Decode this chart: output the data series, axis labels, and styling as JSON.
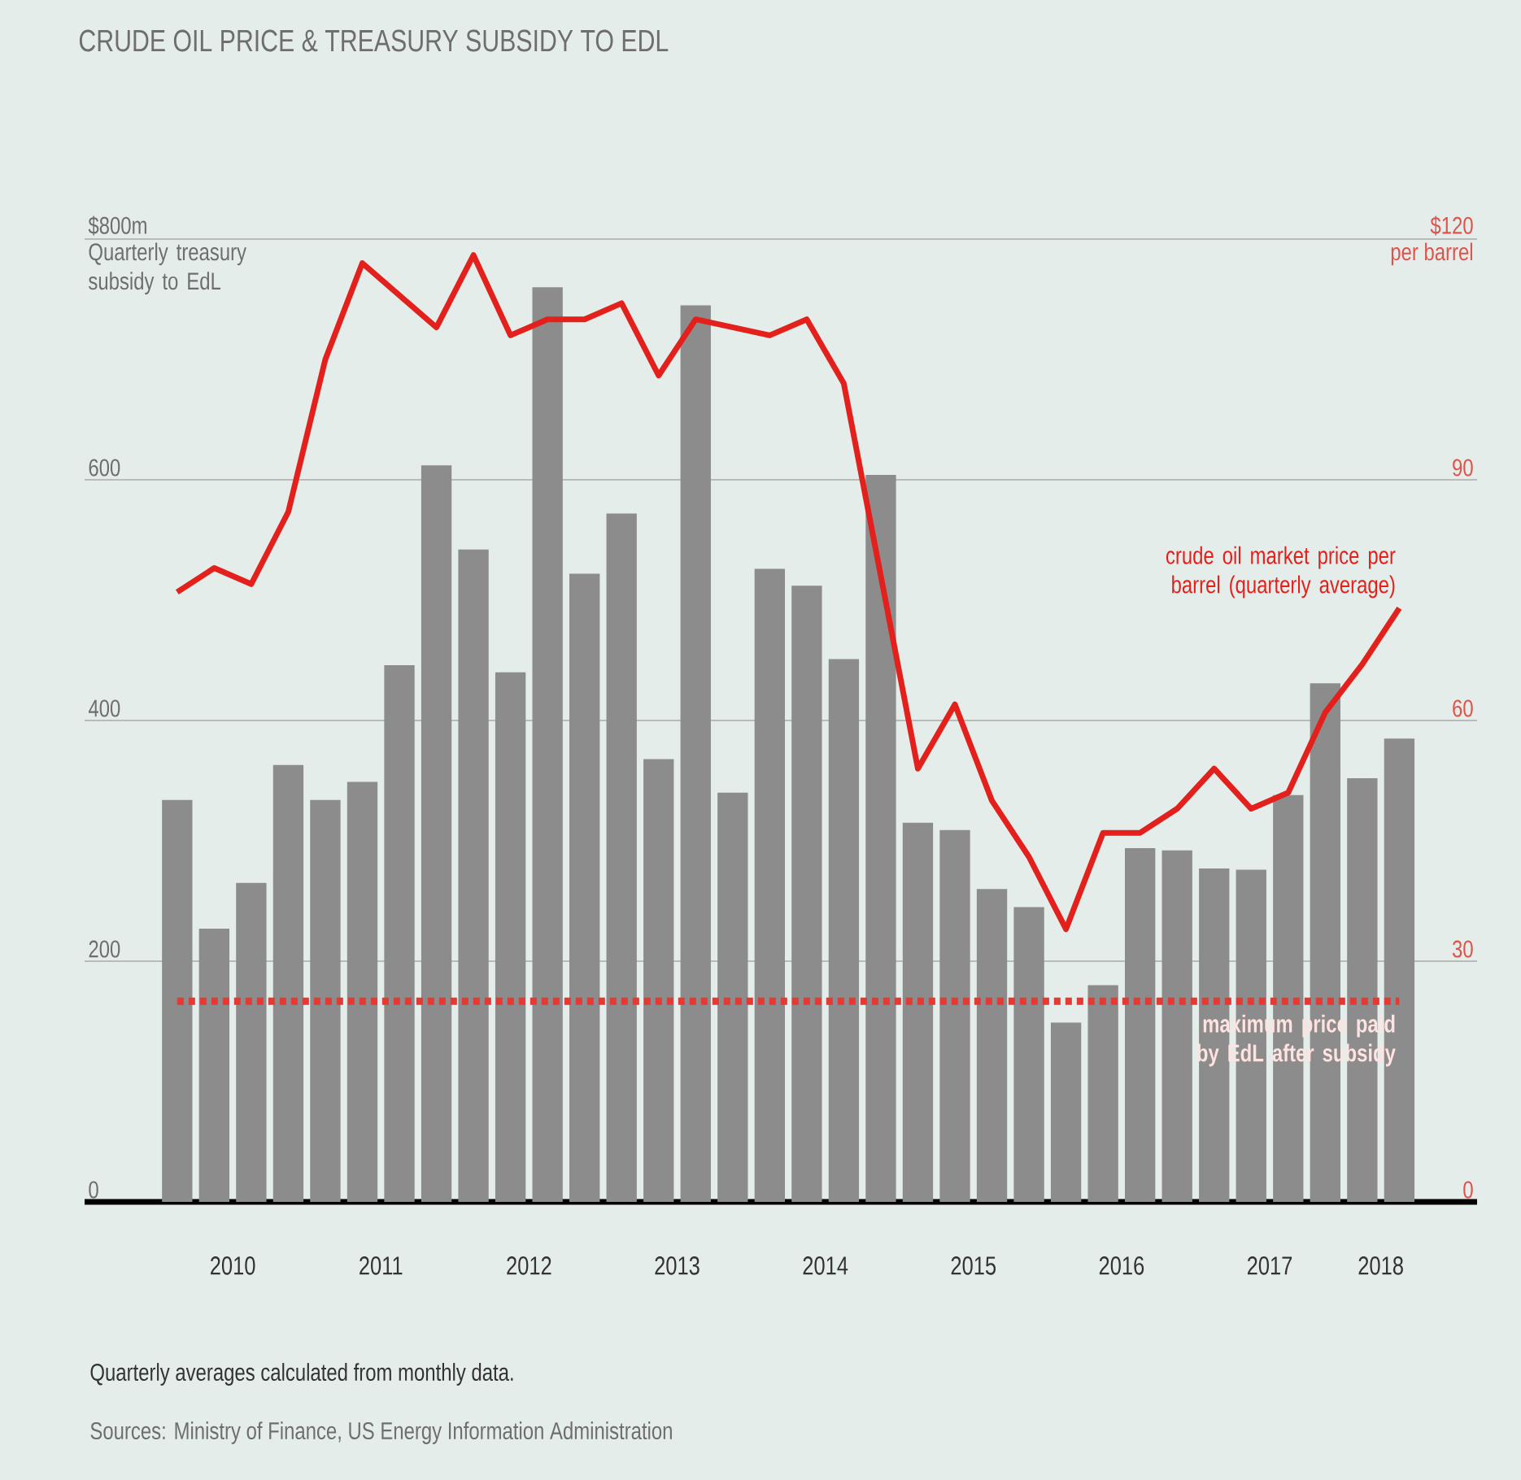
{
  "chart_data": {
    "type": "bar",
    "title": "CRUDE OIL PRICE & TREASURY SUBSIDY TO EDL",
    "ylabel": "Quarterly treasury subsidy to EdL",
    "y2label": "per barrel",
    "annotations": [
      "Quarterly averages calculated from monthly data.",
      "Sources: Ministry of Finance, US Energy Information Administration"
    ],
    "x": [
      2010.125,
      2010.375,
      2010.625,
      2010.875,
      2011.125,
      2011.375,
      2011.625,
      2011.875,
      2012.125,
      2012.375,
      2012.625,
      2012.875,
      2013.125,
      2013.375,
      2013.625,
      2013.875,
      2014.125,
      2014.375,
      2014.625,
      2014.875,
      2015.125,
      2015.375,
      2015.625,
      2015.875,
      2016.125,
      2016.375,
      2016.625,
      2016.875,
      2017.125,
      2017.375,
      2017.625,
      2017.875,
      2018.125,
      2018.375
    ],
    "series": [
      {
        "color": "#8c8c8c",
        "values": [
          334,
          227,
          265,
          363,
          334,
          349,
          446,
          612,
          542,
          440,
          760,
          522,
          572,
          368,
          745,
          340,
          526,
          512,
          451,
          604,
          315,
          309,
          260,
          245,
          149,
          180,
          294,
          292,
          277,
          276,
          338,
          431,
          352,
          385
        ]
      },
      {
        "type": "line",
        "axis": "y2",
        "name": "crude oil market price per barrel (quarterly average)",
        "color": "#e3201b",
        "values": [
          76,
          79,
          77,
          86,
          105,
          117,
          113,
          109,
          118,
          108,
          110,
          110,
          112,
          103,
          110,
          109,
          108,
          110,
          102,
          78,
          54,
          62,
          50,
          43,
          34,
          46,
          46,
          49,
          54,
          49,
          51,
          61,
          67,
          74
        ]
      }
    ],
    "xlim": [
      2009.5,
      2018.9
    ],
    "xticks": [
      {
        "value": 2010.5,
        "label": "2010"
      },
      {
        "value": 2011.5,
        "label": "2011"
      },
      {
        "value": 2012.5,
        "label": "2012"
      },
      {
        "value": 2013.5,
        "label": "2013"
      },
      {
        "value": 2014.5,
        "label": "2014"
      },
      {
        "value": 2015.5,
        "label": "2015"
      },
      {
        "value": 2016.5,
        "label": "2016"
      },
      {
        "value": 2017.5,
        "label": "2017"
      },
      {
        "value": 2018.25,
        "label": "2018"
      }
    ],
    "ylim": [
      0,
      800
    ],
    "yticks": [
      0,
      200,
      400,
      600,
      {
        "value": 800,
        "label": "$800m"
      }
    ],
    "y2lim": [
      0,
      120
    ],
    "y2ticks": [
      0,
      30,
      60,
      90,
      {
        "value": 120,
        "label": "$120"
      }
    ],
    "ref_lines": [
      {
        "axis": "y2",
        "value": 25,
        "label": "maximum price paid by EdL after subsidy",
        "color": "#e53935",
        "line_style": "dotted"
      }
    ],
    "grid": "y",
    "marker": "none",
    "line_style": "solid"
  }
}
